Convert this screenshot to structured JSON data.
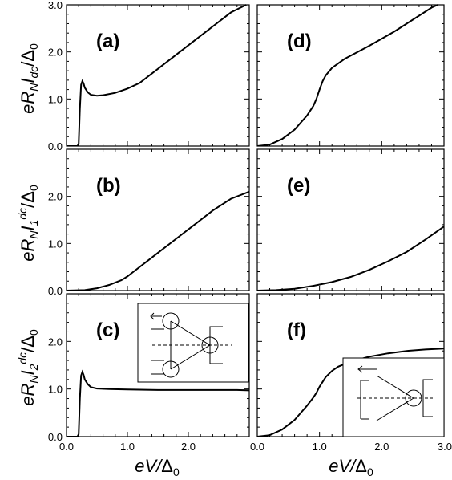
{
  "chart_data": [
    {
      "id": "a",
      "type": "line",
      "label": "(a)",
      "xlim": [
        0,
        3.0
      ],
      "ylim": [
        0,
        3.0
      ],
      "xticks": [],
      "yticks": [
        "0.0",
        "1.0",
        "2.0",
        "3.0"
      ],
      "series": [
        {
          "x": [
            0,
            0.18,
            0.2,
            0.22,
            0.24,
            0.26,
            0.28,
            0.3,
            0.35,
            0.4,
            0.5,
            0.6,
            0.8,
            1.0,
            1.2,
            1.5,
            1.8,
            2.1,
            2.4,
            2.7,
            2.95
          ],
          "y": [
            0,
            0,
            0.05,
            0.8,
            1.3,
            1.38,
            1.33,
            1.24,
            1.14,
            1.09,
            1.07,
            1.08,
            1.13,
            1.22,
            1.34,
            1.64,
            1.94,
            2.24,
            2.54,
            2.84,
            3.0
          ]
        }
      ]
    },
    {
      "id": "d",
      "type": "line",
      "label": "(d)",
      "xlim": [
        0,
        3.0
      ],
      "ylim": [
        0,
        3.0
      ],
      "xticks": [],
      "yticks": [],
      "series": [
        {
          "x": [
            0,
            0.2,
            0.4,
            0.6,
            0.8,
            0.9,
            0.95,
            1.0,
            1.05,
            1.1,
            1.2,
            1.4,
            1.6,
            1.8,
            2.0,
            2.2,
            2.4,
            2.6,
            2.8,
            2.9
          ],
          "y": [
            0,
            0.03,
            0.15,
            0.35,
            0.65,
            0.85,
            1.0,
            1.2,
            1.38,
            1.5,
            1.66,
            1.85,
            1.99,
            2.13,
            2.28,
            2.43,
            2.6,
            2.77,
            2.94,
            3.0
          ]
        }
      ]
    },
    {
      "id": "b",
      "type": "line",
      "label": "(b)",
      "xlim": [
        0,
        3.0
      ],
      "ylim": [
        0,
        3.0
      ],
      "xticks": [],
      "yticks": [
        "0.0",
        "1.0",
        "2.0"
      ],
      "series": [
        {
          "x": [
            0,
            0.3,
            0.5,
            0.7,
            0.9,
            1.0,
            1.1,
            1.3,
            1.5,
            1.8,
            2.1,
            2.4,
            2.7,
            3.0
          ],
          "y": [
            0,
            0.01,
            0.05,
            0.12,
            0.22,
            0.3,
            0.4,
            0.6,
            0.8,
            1.1,
            1.4,
            1.7,
            1.95,
            2.1
          ]
        }
      ]
    },
    {
      "id": "e",
      "type": "line",
      "label": "(e)",
      "xlim": [
        0,
        3.0
      ],
      "ylim": [
        0,
        3.0
      ],
      "xticks": [],
      "yticks": [],
      "series": [
        {
          "x": [
            0,
            0.3,
            0.6,
            0.9,
            1.2,
            1.5,
            1.8,
            2.1,
            2.4,
            2.7,
            3.0
          ],
          "y": [
            0,
            0.01,
            0.04,
            0.1,
            0.18,
            0.29,
            0.44,
            0.62,
            0.82,
            1.08,
            1.36
          ]
        }
      ]
    },
    {
      "id": "c",
      "type": "line",
      "label": "(c)",
      "xlim": [
        0,
        3.0
      ],
      "ylim": [
        0,
        3.0
      ],
      "xticks": [
        "0.0",
        "1.0",
        "2.0"
      ],
      "yticks": [
        "0.0",
        "1.0",
        "2.0"
      ],
      "series": [
        {
          "x": [
            0,
            0.18,
            0.2,
            0.22,
            0.24,
            0.26,
            0.28,
            0.3,
            0.35,
            0.4,
            0.5,
            0.7,
            1.0,
            1.5,
            2.0,
            2.5,
            2.8,
            3.0
          ],
          "y": [
            0,
            0,
            0.05,
            0.8,
            1.28,
            1.36,
            1.3,
            1.2,
            1.1,
            1.04,
            1.01,
            1.0,
            0.99,
            0.98,
            0.98,
            0.98,
            0.98,
            0.97
          ]
        }
      ]
    },
    {
      "id": "f",
      "type": "line",
      "label": "(f)",
      "xlim": [
        0,
        3.0
      ],
      "ylim": [
        0,
        3.0
      ],
      "xticks": [
        "0.0",
        "1.0",
        "2.0",
        "3.0"
      ],
      "yticks": [],
      "series": [
        {
          "x": [
            0,
            0.2,
            0.4,
            0.6,
            0.8,
            0.9,
            0.95,
            1.0,
            1.1,
            1.2,
            1.3,
            1.5,
            1.8,
            2.1,
            2.4,
            2.7,
            3.0
          ],
          "y": [
            0,
            0.03,
            0.15,
            0.35,
            0.65,
            0.82,
            0.92,
            1.05,
            1.25,
            1.38,
            1.47,
            1.58,
            1.68,
            1.75,
            1.8,
            1.83,
            1.85
          ]
        }
      ]
    }
  ],
  "axis_titles": {
    "xlabel": [
      "eV/",
      "Δ",
      "0"
    ],
    "row1": [
      "eR",
      "N",
      "I",
      "dc",
      "/Δ",
      "0"
    ],
    "row2": [
      "eR",
      "N",
      "I",
      "1",
      "dc",
      "/Δ",
      "0"
    ],
    "row3": [
      "eR",
      "N",
      "I",
      "2",
      "dc",
      "/Δ",
      "0"
    ]
  }
}
